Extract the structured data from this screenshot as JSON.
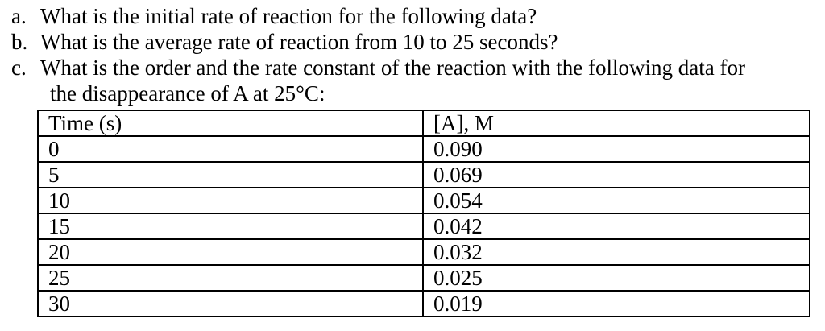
{
  "questions": [
    {
      "letter": "a.",
      "text": "What is the initial rate of reaction for the following data?"
    },
    {
      "letter": "b.",
      "text": "What is the average rate of reaction from 10 to 25 seconds?"
    },
    {
      "letter": "c.",
      "text": "What is the order and the rate constant of the reaction with the following data for",
      "continuation": "the disappearance of A at 25°C:"
    }
  ],
  "table": {
    "headers": [
      "Time (s)",
      "[A], M"
    ],
    "rows": [
      [
        "0",
        "0.090"
      ],
      [
        "5",
        "0.069"
      ],
      [
        "10",
        "0.054"
      ],
      [
        "15",
        "0.042"
      ],
      [
        "20",
        "0.032"
      ],
      [
        "25",
        "0.025"
      ],
      [
        "30",
        "0.019"
      ]
    ]
  }
}
